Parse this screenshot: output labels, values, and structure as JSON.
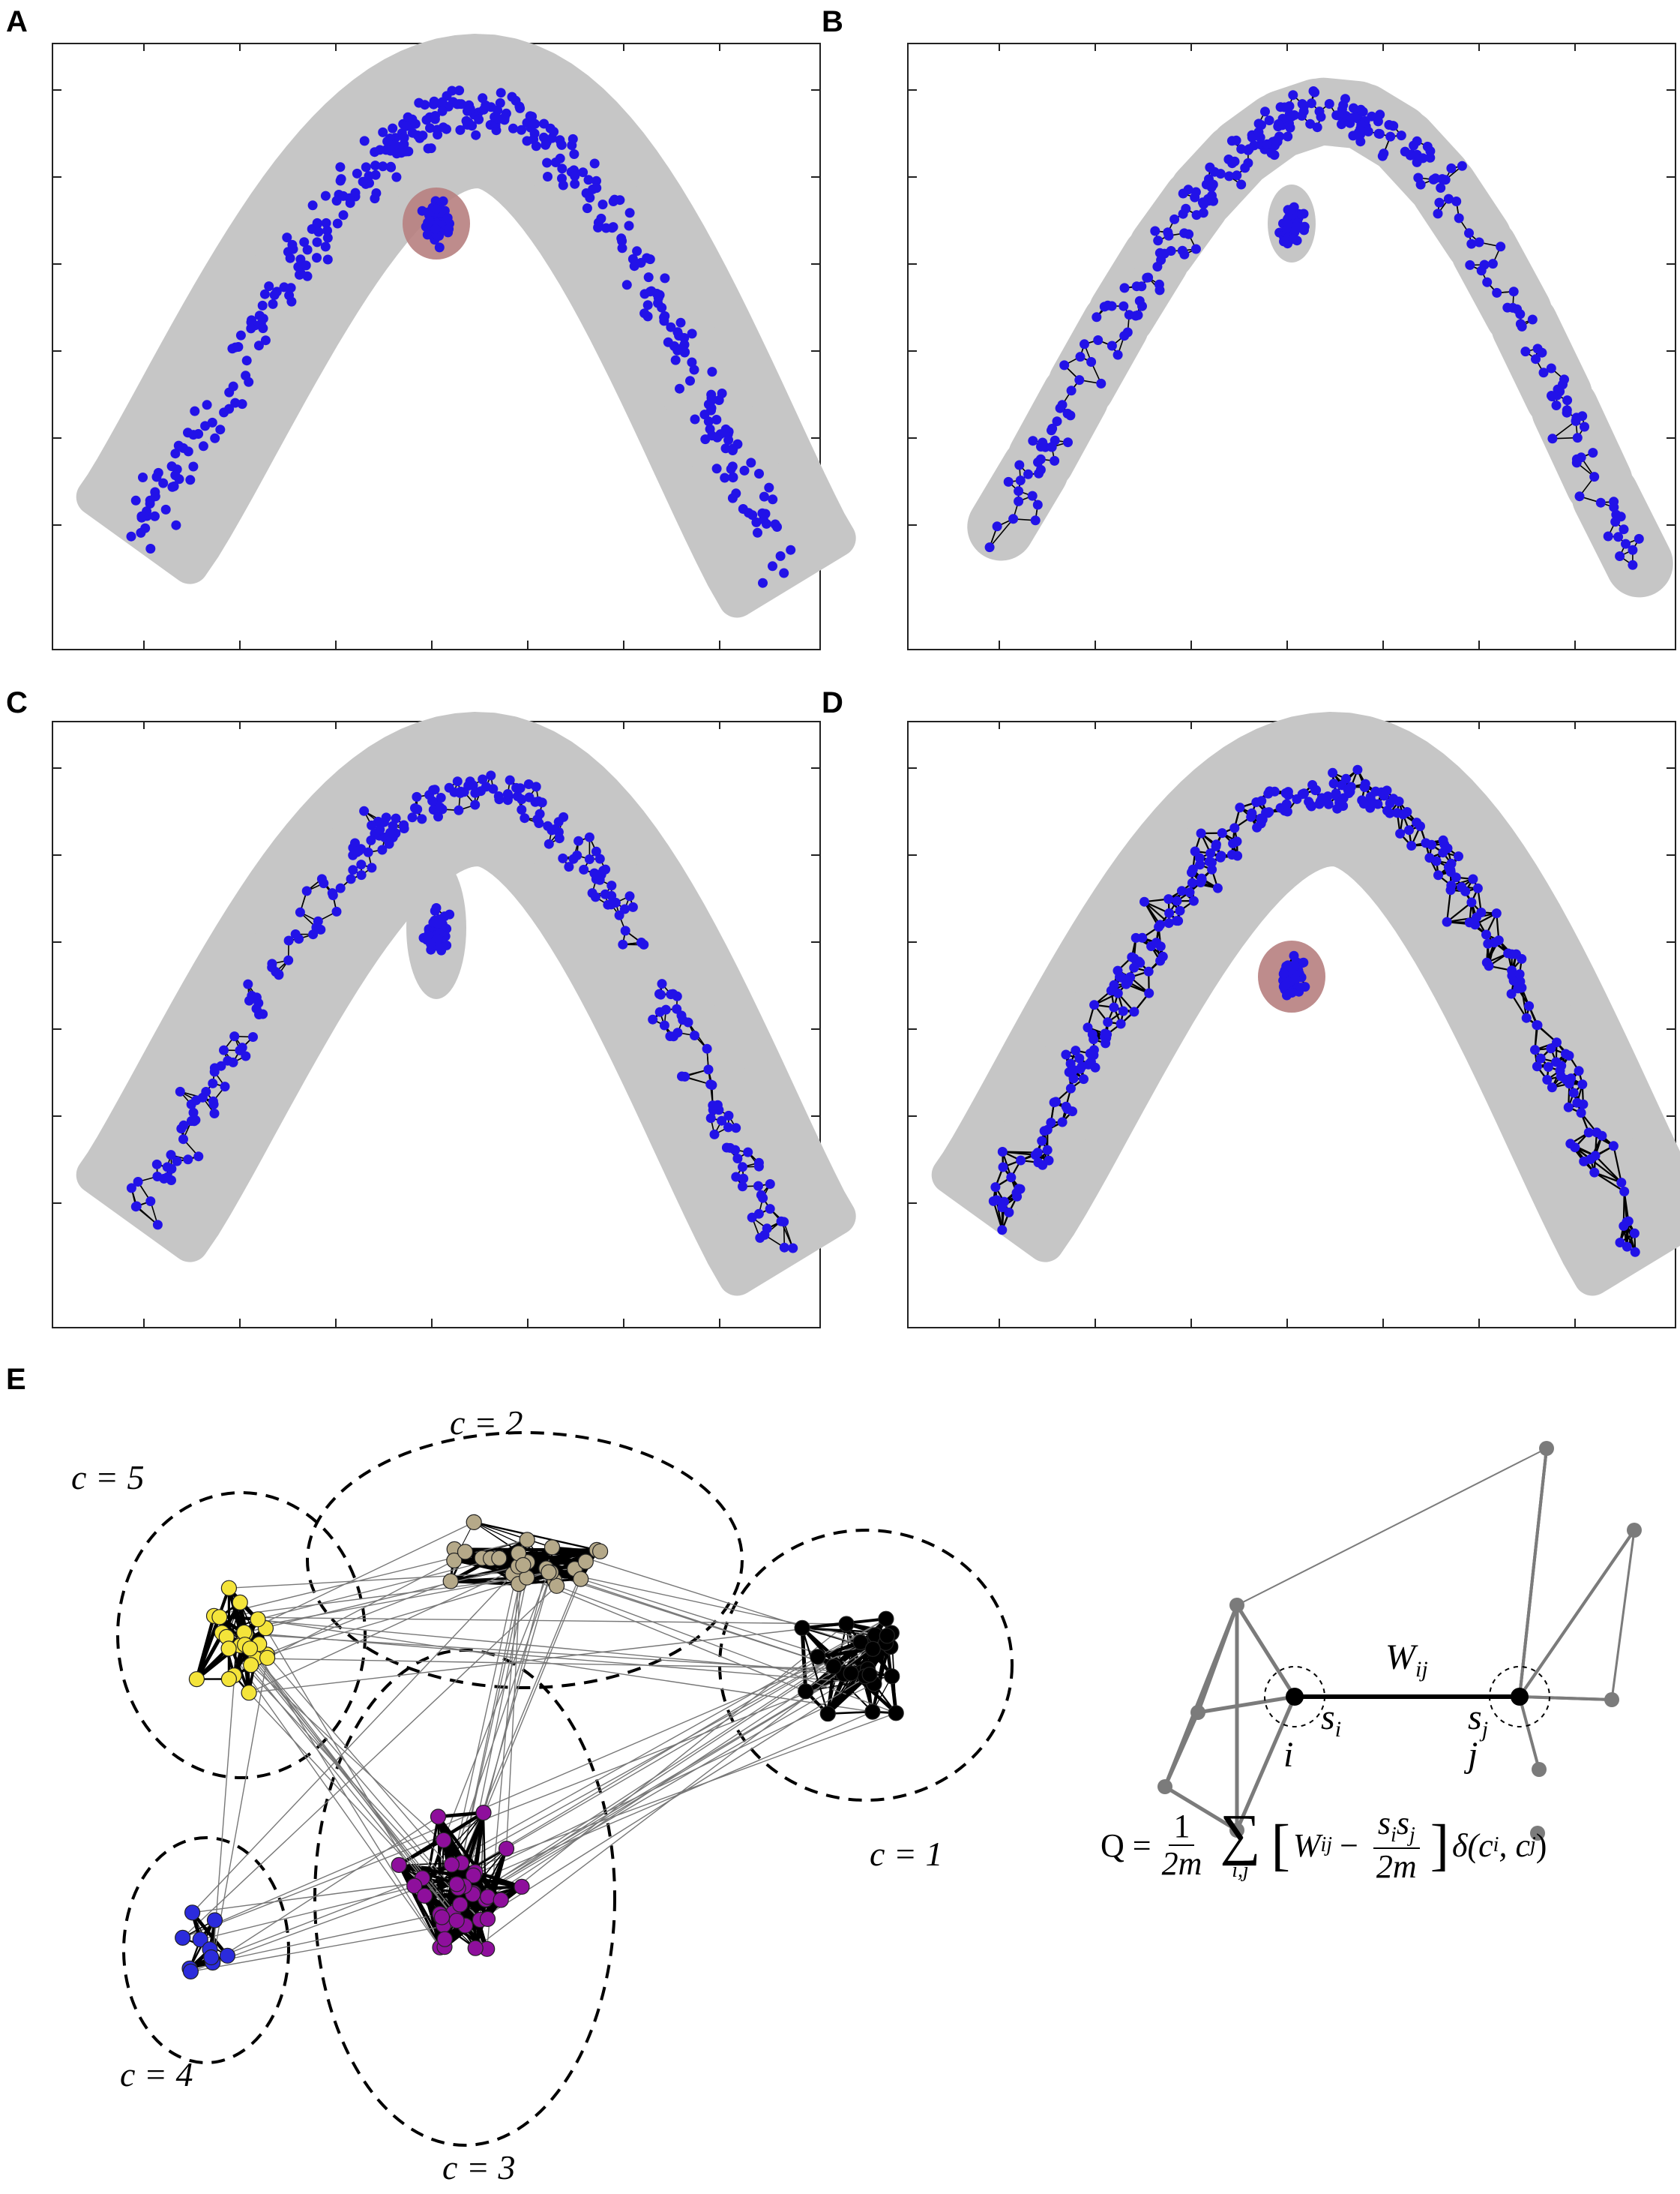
{
  "panels": {
    "A": {
      "letter": "A"
    },
    "B": {
      "letter": "B"
    },
    "C": {
      "letter": "C"
    },
    "D": {
      "letter": "D"
    },
    "E": {
      "letter": "E"
    }
  },
  "communities": [
    {
      "label": "c = 1",
      "color": "#000000"
    },
    {
      "label": "c = 2",
      "color": "#b5a989"
    },
    {
      "label": "c = 3",
      "color": "#8e0f9c"
    },
    {
      "label": "c = 4",
      "color": "#2b2bdc"
    },
    {
      "label": "c = 5",
      "color": "#f4e43a"
    }
  ],
  "colors": {
    "point": "#2212e8",
    "manifold": "#c6c6c6",
    "outlier": "#b77f7f",
    "edge": "#000000",
    "schematic_edge": "#7b7b7b"
  },
  "schematic": {
    "edge_label": "W",
    "edge_label_sub": "ij",
    "node_i": "i",
    "node_j": "j",
    "strength_i": "s",
    "strength_i_sub": "i",
    "strength_j": "s",
    "strength_j_sub": "j"
  },
  "formula": {
    "lhs": "Q =",
    "frac1_num": "1",
    "frac1_den": "2m",
    "sum_index": "i,j",
    "W": "W",
    "W_sub": "ij",
    "minus": "−",
    "frac2_num_a": "s",
    "frac2_num_a_sub": "i",
    "frac2_num_b": "s",
    "frac2_num_b_sub": "j",
    "frac2_den": "2m",
    "delta": "δ(c",
    "delta_sub1": "i",
    "delta_mid": ", c",
    "delta_sub2": "j",
    "delta_end": ")"
  }
}
